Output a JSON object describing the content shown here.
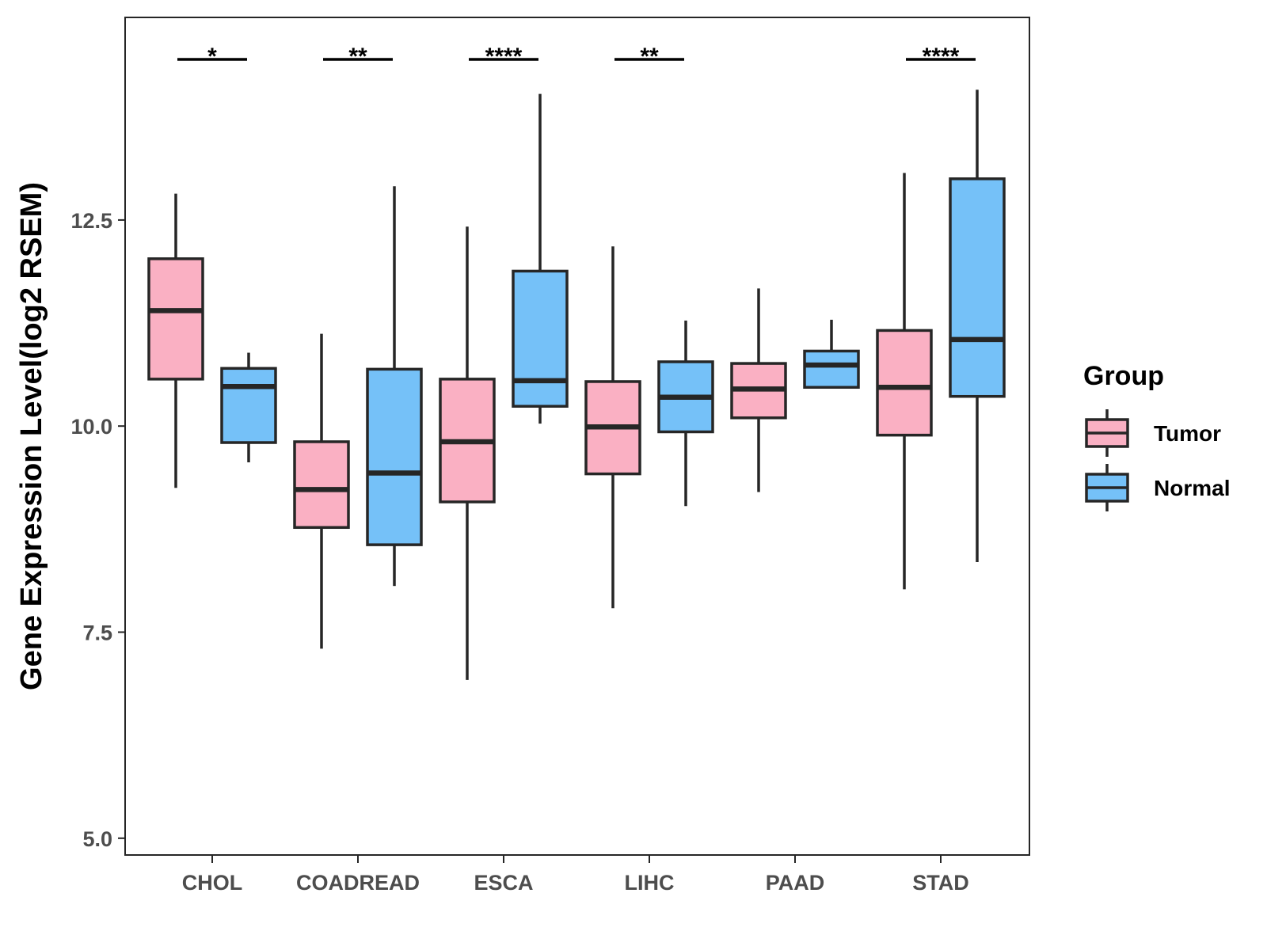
{
  "chart_data": {
    "type": "boxplot",
    "title": "",
    "xlabel": "",
    "ylabel": "Gene Expression Level(log2 RSEM)",
    "ylim": [
      4.8,
      14.9
    ],
    "yticks": [
      5.0,
      7.5,
      10.0,
      12.5
    ],
    "ytick_labels": [
      "5.0",
      "7.5",
      "10.0",
      "12.5"
    ],
    "categories": [
      "CHOL",
      "COADREAD",
      "ESCA",
      "LIHC",
      "PAAD",
      "STAD"
    ],
    "legend": {
      "title": "Group",
      "position": "right",
      "entries": [
        "Tumor",
        "Normal"
      ]
    },
    "series": [
      {
        "name": "Tumor",
        "color": "#FAB0C3",
        "boxes": [
          {
            "min": 9.25,
            "q1": 10.57,
            "median": 11.4,
            "q3": 12.03,
            "max": 12.82
          },
          {
            "min": 7.3,
            "q1": 8.77,
            "median": 9.23,
            "q3": 9.81,
            "max": 11.12
          },
          {
            "min": 6.92,
            "q1": 9.08,
            "median": 9.81,
            "q3": 10.57,
            "max": 12.42
          },
          {
            "min": 7.79,
            "q1": 9.42,
            "median": 9.99,
            "q3": 10.54,
            "max": 12.18
          },
          {
            "min": 9.2,
            "q1": 10.1,
            "median": 10.45,
            "q3": 10.76,
            "max": 11.67
          },
          {
            "min": 8.02,
            "q1": 9.89,
            "median": 10.47,
            "q3": 11.16,
            "max": 13.07
          }
        ]
      },
      {
        "name": "Normal",
        "color": "#75C1F8",
        "boxes": [
          {
            "min": 9.56,
            "q1": 9.8,
            "median": 10.48,
            "q3": 10.7,
            "max": 10.89
          },
          {
            "min": 8.06,
            "q1": 8.56,
            "median": 9.43,
            "q3": 10.69,
            "max": 12.91
          },
          {
            "min": 10.03,
            "q1": 10.24,
            "median": 10.55,
            "q3": 11.88,
            "max": 14.03
          },
          {
            "min": 9.03,
            "q1": 9.93,
            "median": 10.35,
            "q3": 10.78,
            "max": 11.28
          },
          {
            "min": 10.47,
            "q1": 10.47,
            "median": 10.74,
            "q3": 10.91,
            "max": 11.29
          },
          {
            "min": 8.35,
            "q1": 10.36,
            "median": 11.05,
            "q3": 13.0,
            "max": 14.08
          }
        ]
      }
    ],
    "significance": [
      {
        "category": "CHOL",
        "label": "*"
      },
      {
        "category": "COADREAD",
        "label": "**"
      },
      {
        "category": "ESCA",
        "label": "****"
      },
      {
        "category": "LIHC",
        "label": "**"
      },
      {
        "category": "PAAD",
        "label": ""
      },
      {
        "category": "STAD",
        "label": "****"
      }
    ],
    "box_outline_color": "#262626",
    "panel_border_color": "#262626"
  }
}
